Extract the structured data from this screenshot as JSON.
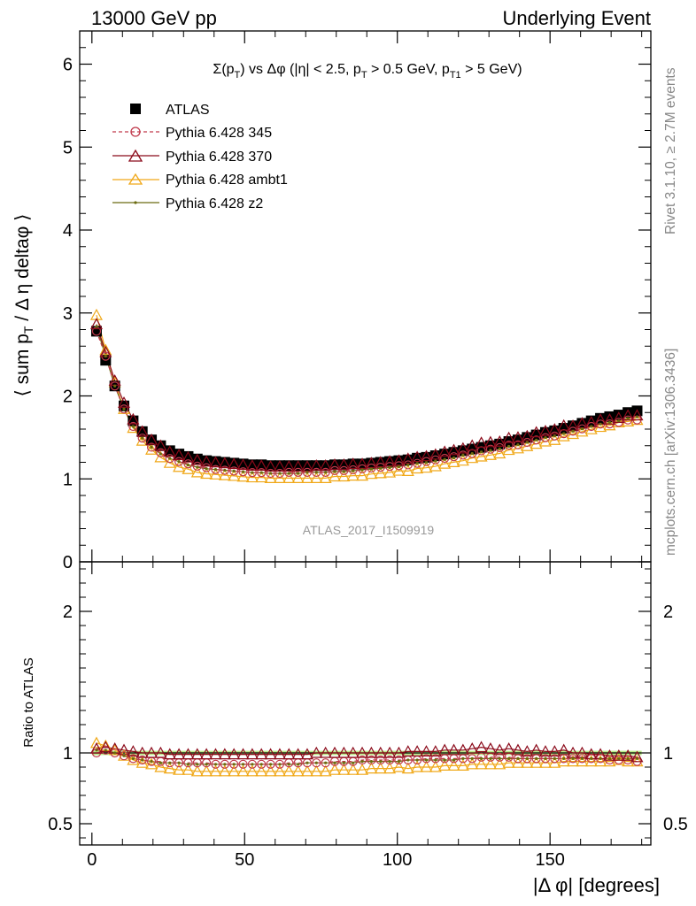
{
  "header": {
    "left": "13000 GeV pp",
    "right": "Underlying Event"
  },
  "title_parts": {
    "main": "Σ(p",
    "sub1": "T",
    "mid": ") vs Δφ (|η| < 2.5, p",
    "sub2": "T",
    "mid2": " > 0.5 GeV, p",
    "sub3": "T1",
    "end": " > 5 GeV)"
  },
  "ylabel_parts": {
    "pre": "⟨ sum p",
    "sub": "T",
    "post": " / Δ η deltaφ ⟩"
  },
  "side_text": {
    "rivet": "Rivet 3.1.10, ≥ 2.7M events",
    "mcplots": "mcplots.cern.ch [arXiv:1306.3436]"
  },
  "watermark": "ATLAS_2017_I1509919",
  "ratio_ylabel": "Ratio to ATLAS",
  "xlabel": "|Δ φ| [degrees]",
  "colors": {
    "atlas": "#000000",
    "p345": "#c0394b",
    "p370": "#8b0a1a",
    "ambt1": "#f0a818",
    "z2": "#6b6b10",
    "band": "#b8e986"
  },
  "chart_data": {
    "type": "scatter",
    "xlim": [
      -4,
      183
    ],
    "main_ylim": [
      0,
      6.4
    ],
    "ratio_ylim": [
      0.35,
      2.35
    ],
    "main_yticks": [
      "0",
      "1",
      "2",
      "3",
      "4",
      "5",
      "6"
    ],
    "main_ytick_values": [
      0,
      1,
      2,
      3,
      4,
      5,
      6
    ],
    "ratio_yticks": [
      "0.5",
      "1",
      "2"
    ],
    "ratio_ytick_values": [
      0.5,
      1,
      2
    ],
    "xticks": [
      "0",
      "50",
      "100",
      "150"
    ],
    "xtick_values": [
      0,
      50,
      100,
      150
    ],
    "x": [
      1.5,
      4.5,
      7.5,
      10.5,
      13.5,
      16.5,
      19.5,
      22.5,
      25.5,
      28.5,
      31.5,
      34.5,
      37.5,
      40.5,
      43.5,
      46.5,
      49.5,
      52.5,
      55.5,
      58.5,
      61.5,
      64.5,
      67.5,
      70.5,
      73.5,
      76.5,
      79.5,
      82.5,
      85.5,
      88.5,
      91.5,
      94.5,
      97.5,
      100.5,
      103.5,
      106.5,
      109.5,
      112.5,
      115.5,
      118.5,
      121.5,
      124.5,
      127.5,
      130.5,
      133.5,
      136.5,
      139.5,
      142.5,
      145.5,
      148.5,
      151.5,
      154.5,
      157.5,
      160.5,
      163.5,
      166.5,
      169.5,
      172.5,
      175.5,
      178.5
    ],
    "legend": [
      "ATLAS",
      "Pythia 6.428 345",
      "Pythia 6.428 370",
      "Pythia 6.428 ambt1",
      "Pythia 6.428 z2"
    ],
    "atlas": [
      2.78,
      2.43,
      2.12,
      1.88,
      1.7,
      1.57,
      1.47,
      1.4,
      1.34,
      1.3,
      1.27,
      1.24,
      1.22,
      1.21,
      1.2,
      1.19,
      1.18,
      1.17,
      1.17,
      1.16,
      1.16,
      1.16,
      1.16,
      1.16,
      1.16,
      1.16,
      1.17,
      1.17,
      1.18,
      1.18,
      1.19,
      1.2,
      1.21,
      1.22,
      1.23,
      1.25,
      1.26,
      1.28,
      1.3,
      1.32,
      1.34,
      1.36,
      1.38,
      1.4,
      1.42,
      1.45,
      1.47,
      1.5,
      1.53,
      1.56,
      1.58,
      1.61,
      1.64,
      1.67,
      1.7,
      1.73,
      1.75,
      1.77,
      1.8,
      1.82
    ],
    "ratio_x": [
      1.5,
      4.5,
      7.5,
      10.5,
      13.5,
      16.5,
      19.5,
      22.5,
      25.5,
      28.5,
      31.5,
      34.5,
      37.5,
      40.5,
      43.5,
      46.5,
      49.5,
      52.5,
      55.5,
      58.5,
      61.5,
      64.5,
      67.5,
      70.5,
      73.5,
      76.5,
      79.5,
      82.5,
      85.5,
      88.5,
      91.5,
      94.5,
      97.5,
      100.5,
      103.5,
      106.5,
      109.5,
      112.5,
      115.5,
      118.5,
      121.5,
      124.5,
      127.5,
      130.5,
      133.5,
      136.5,
      139.5,
      142.5,
      145.5,
      148.5,
      151.5,
      154.5,
      157.5,
      160.5,
      163.5,
      166.5,
      169.5,
      172.5,
      175.5,
      178.5
    ],
    "ratio_345": [
      1.0,
      1.02,
      1.0,
      0.98,
      0.96,
      0.95,
      0.94,
      0.94,
      0.93,
      0.93,
      0.93,
      0.93,
      0.93,
      0.92,
      0.92,
      0.92,
      0.92,
      0.92,
      0.92,
      0.92,
      0.92,
      0.93,
      0.93,
      0.93,
      0.93,
      0.93,
      0.94,
      0.94,
      0.94,
      0.95,
      0.95,
      0.95,
      0.95,
      0.95,
      0.95,
      0.95,
      0.96,
      0.96,
      0.96,
      0.96,
      0.96,
      0.96,
      0.97,
      0.97,
      0.97,
      0.97,
      0.96,
      0.96,
      0.96,
      0.96,
      0.96,
      0.96,
      0.96,
      0.96,
      0.96,
      0.96,
      0.95,
      0.95,
      0.95,
      0.94
    ],
    "ratio_370": [
      1.03,
      1.04,
      1.03,
      1.02,
      1.01,
      1.0,
      1.0,
      1.0,
      0.99,
      0.99,
      0.99,
      0.99,
      0.99,
      0.99,
      0.99,
      0.99,
      0.99,
      0.99,
      0.99,
      0.99,
      0.99,
      0.99,
      0.99,
      0.99,
      1.0,
      1.0,
      1.0,
      1.0,
      1.0,
      1.0,
      1.0,
      1.0,
      1.0,
      1.0,
      1.01,
      1.01,
      1.01,
      1.01,
      1.02,
      1.02,
      1.02,
      1.03,
      1.04,
      1.03,
      1.02,
      1.03,
      1.02,
      1.01,
      1.02,
      1.01,
      1.01,
      1.02,
      1.0,
      1.0,
      0.99,
      0.99,
      0.98,
      0.98,
      0.98,
      0.97
    ],
    "ratio_ambt1": [
      1.07,
      1.05,
      1.02,
      0.98,
      0.95,
      0.93,
      0.92,
      0.9,
      0.89,
      0.88,
      0.88,
      0.87,
      0.87,
      0.87,
      0.87,
      0.87,
      0.87,
      0.87,
      0.87,
      0.87,
      0.87,
      0.87,
      0.87,
      0.87,
      0.87,
      0.87,
      0.88,
      0.88,
      0.88,
      0.88,
      0.89,
      0.89,
      0.89,
      0.9,
      0.89,
      0.9,
      0.9,
      0.9,
      0.91,
      0.91,
      0.91,
      0.92,
      0.92,
      0.92,
      0.92,
      0.93,
      0.93,
      0.93,
      0.93,
      0.93,
      0.93,
      0.94,
      0.94,
      0.94,
      0.94,
      0.94,
      0.94,
      0.95,
      0.94,
      0.94
    ],
    "ratio_z2": [
      1.02,
      1.02,
      1.0,
      0.98,
      0.96,
      0.95,
      0.94,
      0.93,
      0.93,
      0.93,
      0.92,
      0.92,
      0.92,
      0.92,
      0.92,
      0.92,
      0.92,
      0.92,
      0.92,
      0.92,
      0.92,
      0.92,
      0.92,
      0.93,
      0.93,
      0.93,
      0.93,
      0.93,
      0.93,
      0.94,
      0.94,
      0.94,
      0.94,
      0.94,
      0.95,
      0.95,
      0.95,
      0.95,
      0.95,
      0.95,
      0.96,
      0.96,
      0.96,
      0.96,
      0.96,
      0.96,
      0.96,
      0.96,
      0.96,
      0.96,
      0.96,
      0.96,
      0.96,
      0.96,
      0.96,
      0.96,
      0.96,
      0.96,
      0.96,
      0.96
    ]
  }
}
